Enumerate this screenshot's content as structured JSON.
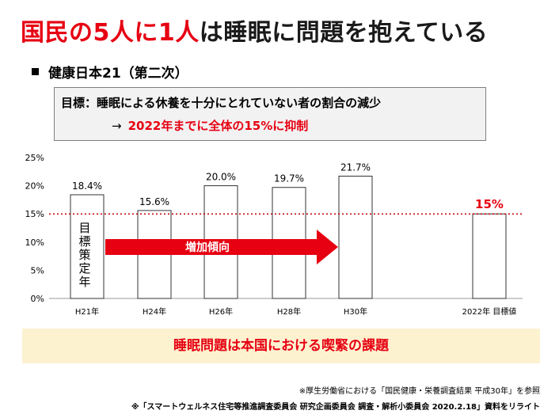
{
  "headline": {
    "red_part": "国民の5人に1人",
    "dark_part": "は睡眠に問題を抱えている"
  },
  "section": {
    "title": "健康日本21（第二次）"
  },
  "goal": {
    "line1": "目標：睡眠による休養を十分にとれていない者の割合の減少",
    "arrow": "→",
    "line2": "2022年までに全体の15%に抑制"
  },
  "chart_data": {
    "type": "bar",
    "categories": [
      "H21年",
      "H24年",
      "H26年",
      "H28年",
      "H30年",
      "2022年 目標値"
    ],
    "values": [
      18.4,
      15.6,
      20.0,
      19.7,
      21.7,
      15
    ],
    "value_labels": [
      "18.4%",
      "15.6%",
      "20.0%",
      "19.7%",
      "21.7%",
      "15%"
    ],
    "highlight_index": 5,
    "y_ticks": [
      "0%",
      "5%",
      "10%",
      "15%",
      "20%",
      "25%"
    ],
    "ylim": [
      0,
      25
    ],
    "reference_line": 15,
    "bar_annotation": "目標策定年",
    "trend_label": "増加傾向",
    "colors": {
      "bar_fill": "#ffffff",
      "bar_stroke": "#333333",
      "highlight": "#e60012",
      "arrow": "#e60012",
      "reference": "#c00000"
    }
  },
  "banner": {
    "text": "睡眠問題は本国における喫緊の課題"
  },
  "notes": {
    "source": "※厚生労働省における「国民健康・栄養調査結果 平成30年」を参照",
    "credit": "※「スマートウェルネス住宅等推進調査委員会 研究企画委員会 調査・解析小委員会 2020.2.18」資料をリライト"
  }
}
